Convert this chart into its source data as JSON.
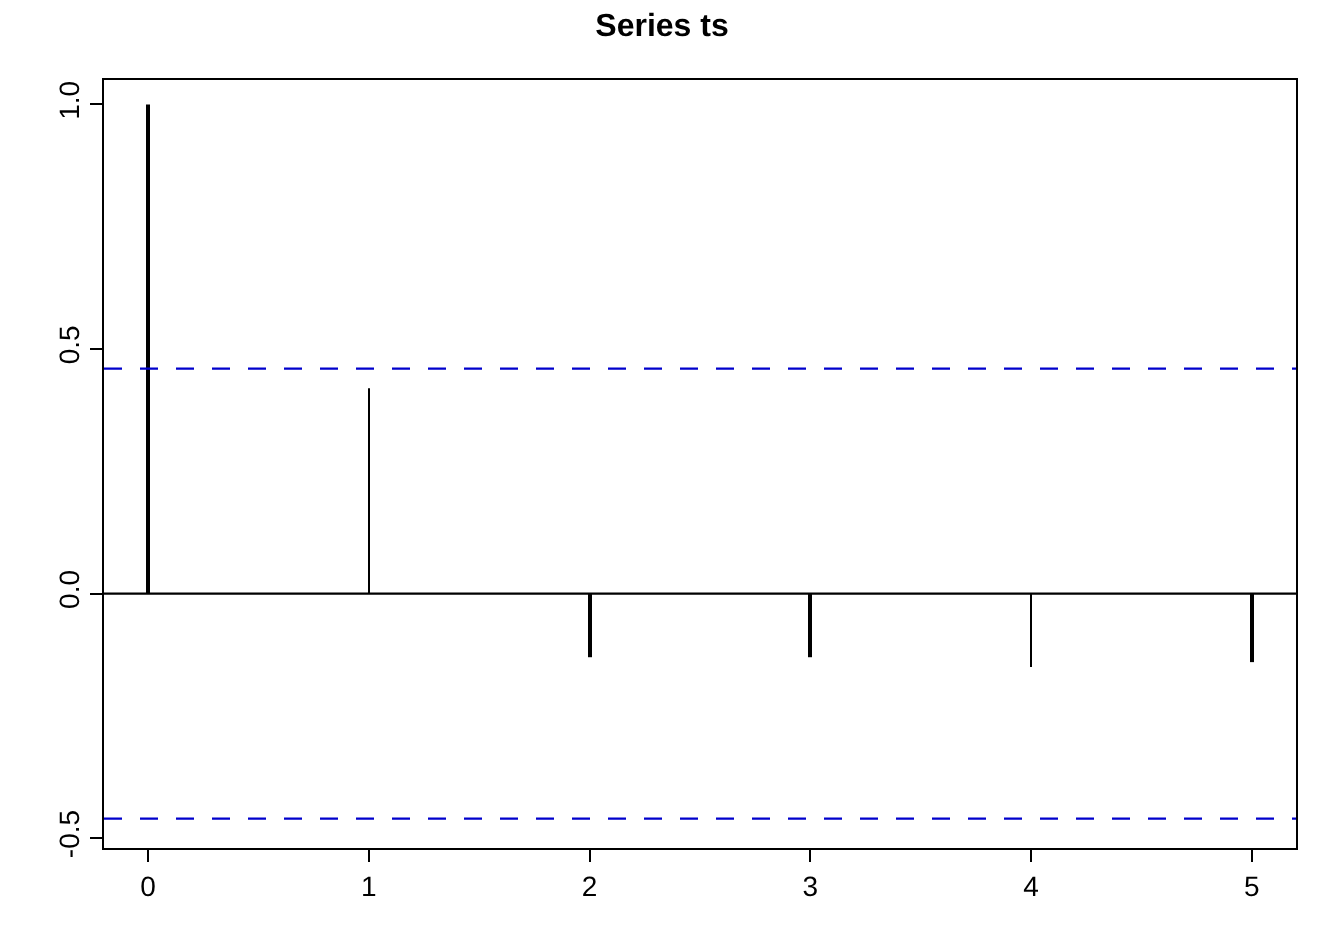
{
  "chart_data": {
    "type": "bar",
    "title": "Series ts",
    "color": "#000000",
    "x": [
      0,
      1,
      2,
      3,
      4,
      5
    ],
    "values": [
      1.0,
      0.42,
      -0.13,
      -0.13,
      -0.15,
      -0.14
    ],
    "xlim": [
      -0.2,
      5.2
    ],
    "xticks": [
      0,
      1,
      2,
      3,
      4,
      5
    ],
    "ylim": [
      -0.52,
      1.05
    ],
    "yticks": [
      -0.5,
      {
        "value": 0,
        "label": "0.0"
      },
      0.5,
      {
        "value": 1,
        "label": "1.0"
      }
    ],
    "ref_lines": [
      {
        "axis": "y",
        "value": 0,
        "color": "#000000",
        "line_style": "solid"
      },
      {
        "axis": "y",
        "value": 0.46,
        "color": "#0000cc",
        "line_style": "dashed"
      },
      {
        "axis": "y",
        "value": -0.46,
        "color": "#0000cc",
        "line_style": "dashed"
      }
    ],
    "tick_labels": true
  }
}
